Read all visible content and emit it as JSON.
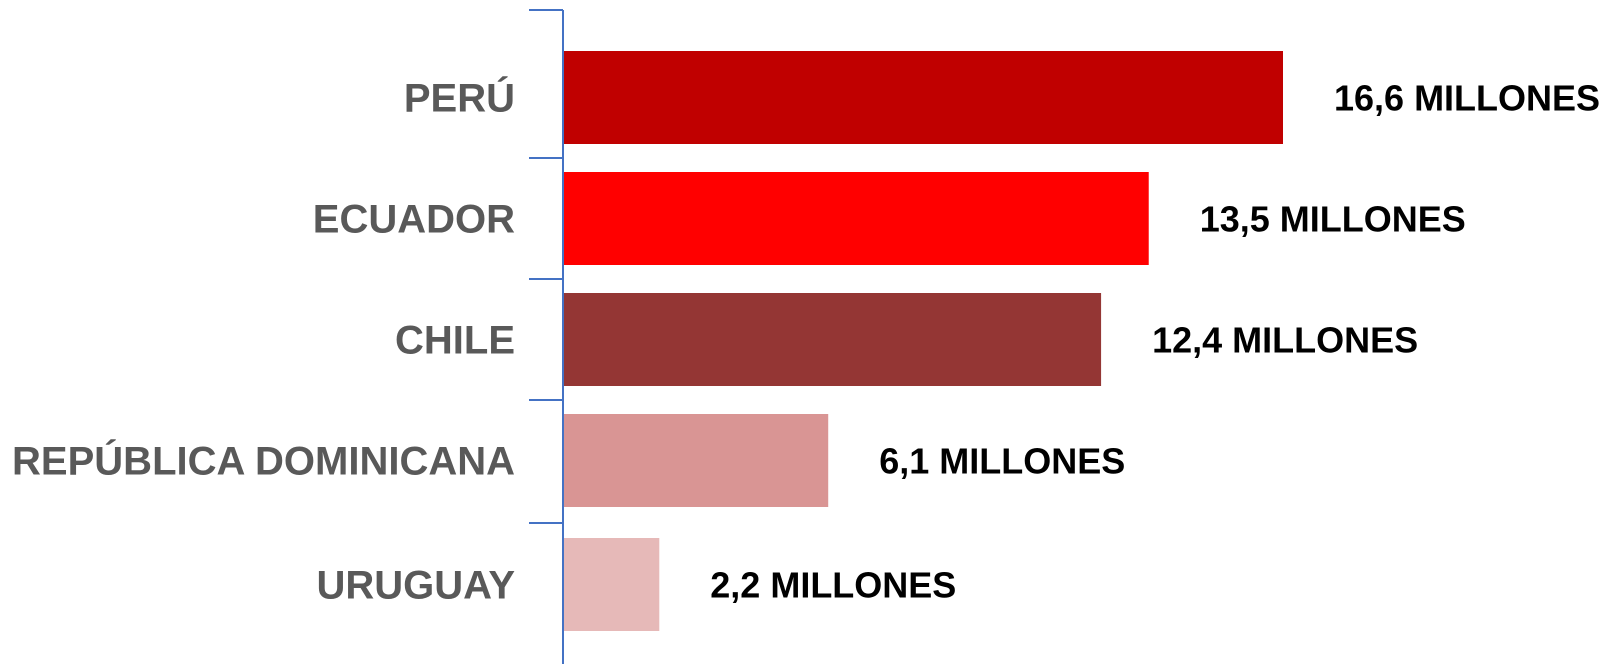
{
  "chart_data": {
    "type": "bar",
    "orientation": "horizontal",
    "title": "",
    "xlabel": "",
    "ylabel": "",
    "grid": false,
    "legend": "none",
    "xlim": [
      0,
      16.6
    ],
    "categories": [
      "PERÚ",
      "ECUADOR",
      "CHILE",
      "REPÚBLICA DOMINICANA",
      "URUGUAY"
    ],
    "values": [
      16.6,
      13.5,
      12.4,
      6.1,
      2.2
    ],
    "value_labels": [
      "16,6 MILLONES",
      "13,5 MILLONES",
      "12,4 MILLONES",
      "6,1 MILLONES",
      "2,2 MILLONES"
    ],
    "colors": [
      "#C00000",
      "#FF0000",
      "#943634",
      "#D99594",
      "#E6B9B8"
    ],
    "axis_color": "#4472C4",
    "category_label_color": "#595959",
    "value_label_color": "#000000"
  }
}
